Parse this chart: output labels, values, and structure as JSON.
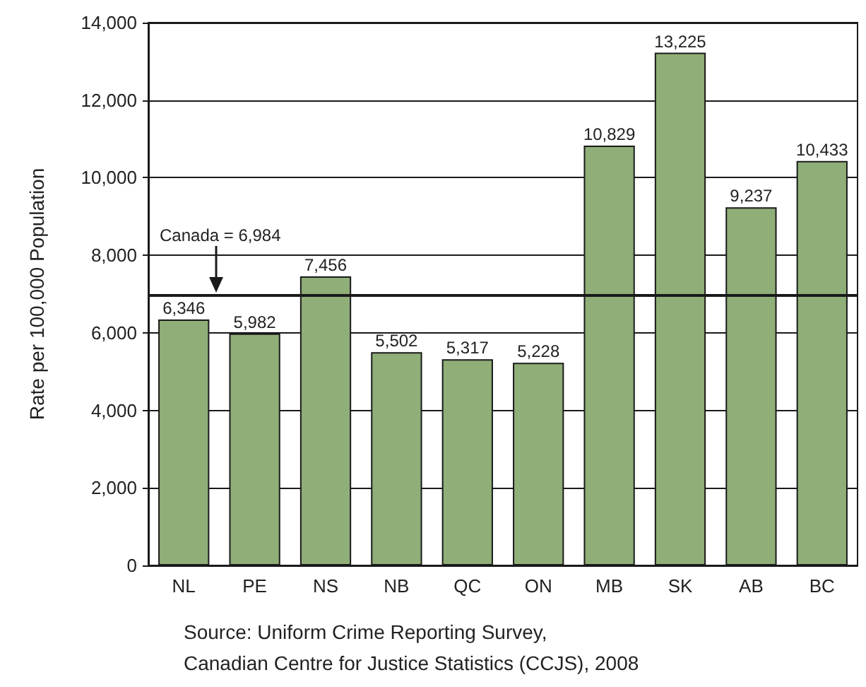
{
  "chart_data": {
    "type": "bar",
    "ylabel": "Rate per 100,000 Population",
    "categories": [
      "NL",
      "PE",
      "NS",
      "NB",
      "QC",
      "ON",
      "MB",
      "SK",
      "AB",
      "BC"
    ],
    "values": [
      6346,
      5982,
      7456,
      5502,
      5317,
      5228,
      10829,
      13225,
      9237,
      10433
    ],
    "value_labels": [
      "6,346",
      "5,982",
      "7,456",
      "5,502",
      "5,317",
      "5,228",
      "10,829",
      "13,225",
      "9,237",
      "10,433"
    ],
    "color": "#8fae78",
    "ylim": [
      0,
      14000
    ],
    "yticks": [
      0,
      {
        "value": 2000,
        "label": "2,000"
      },
      {
        "value": 4000,
        "label": "4,000"
      },
      {
        "value": 6000,
        "label": "6,000"
      },
      {
        "value": 8000,
        "label": "8,000"
      },
      {
        "value": 10000,
        "label": "10,000"
      },
      {
        "value": 12000,
        "label": "12,000"
      },
      {
        "value": 14000,
        "label": "14,000"
      }
    ],
    "grid": "y",
    "ref_lines": [
      {
        "axis": "y",
        "value": 6984,
        "label": "Canada = 6,984",
        "color": "#1a1a1a",
        "line_style": "solid"
      }
    ],
    "annotations": [
      "Source: Uniform Crime Reporting Survey,\nCanadian Centre for Justice Statistics (CCJS), 2008"
    ]
  }
}
